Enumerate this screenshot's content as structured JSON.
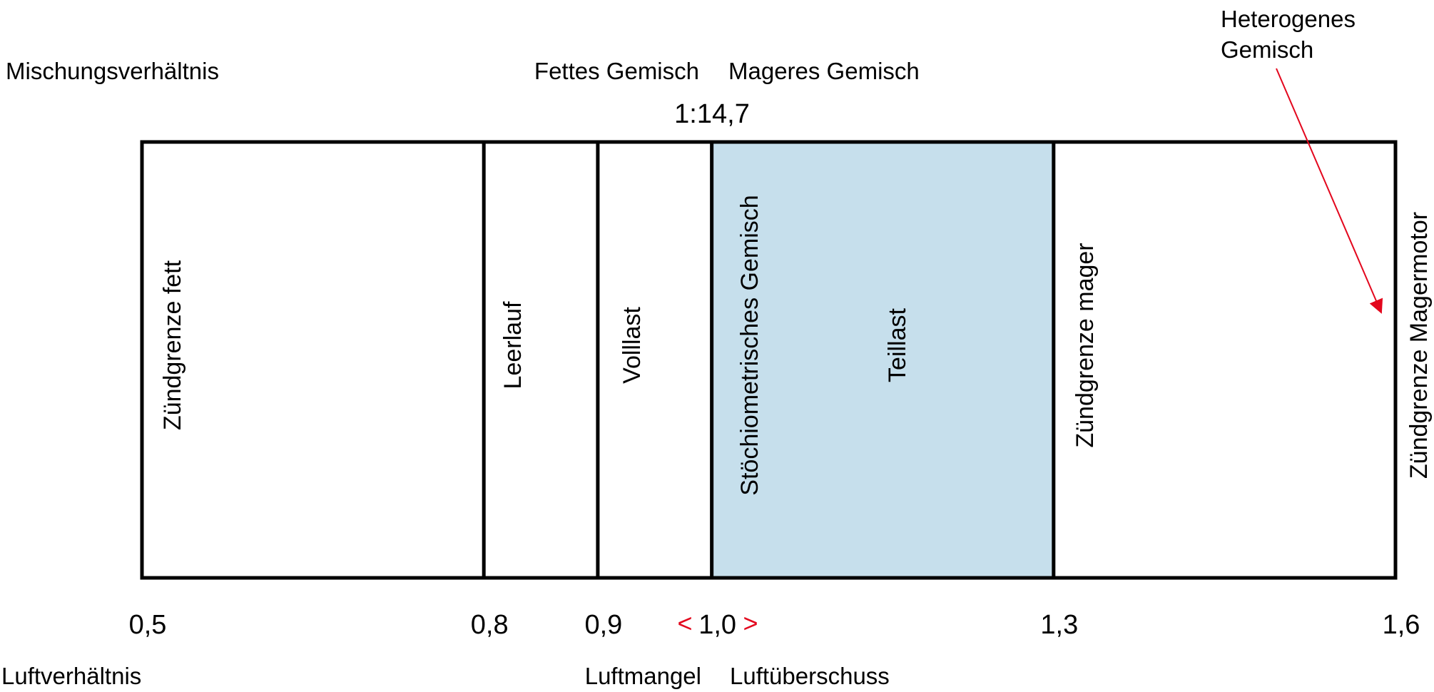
{
  "labels": {
    "mischungsverhaeltnis": "Mischungsverhältnis",
    "luftverhaeltnis": "Luftverhältnis",
    "fettes_gemisch": "Fettes Gemisch",
    "mageres_gemisch": "Mageres Gemisch",
    "stoich_ratio": "1:14,7",
    "heterogenes_line1": "Heterogenes",
    "heterogenes_line2": "Gemisch",
    "luftmangel": "Luftmangel",
    "luftueberschuss": "Luftüberschuss",
    "less_than": "<",
    "greater_than": ">"
  },
  "scale": {
    "lambda_min": 0.5,
    "lambda_max": 1.6,
    "boundaries": [
      0.8,
      0.9,
      1.0,
      1.3
    ],
    "ticks": [
      {
        "value": 0.5,
        "label": "0,5"
      },
      {
        "value": 0.8,
        "label": "0,8"
      },
      {
        "value": 0.9,
        "label": "0,9"
      },
      {
        "value": 1.0,
        "label": "1,0"
      },
      {
        "value": 1.3,
        "label": "1,3"
      },
      {
        "value": 1.6,
        "label": "1,6"
      }
    ]
  },
  "regions": [
    {
      "label": "Zündgrenze fett",
      "from": 0.5,
      "to": 0.8
    },
    {
      "label": "Leerlauf",
      "from": 0.8,
      "to": 0.9
    },
    {
      "label": "Volllast",
      "from": 0.9,
      "to": 1.0
    },
    {
      "label": "Stöchiometrisches Gemisch",
      "from": 1.0,
      "to": 1.3
    },
    {
      "label": "Teillast",
      "from": 1.0,
      "to": 1.3
    },
    {
      "label": "Zündgrenze mager",
      "from": 1.3,
      "to": 1.6
    },
    {
      "label": "Zündgrenze Magermotor",
      "from": 1.6,
      "to": 1.6
    }
  ],
  "highlight": {
    "from": 1.0,
    "to": 1.3,
    "color": "#c6dfec"
  },
  "colors": {
    "frame": "#000000",
    "highlight": "#c6dfec",
    "accent": "#e3071d"
  }
}
